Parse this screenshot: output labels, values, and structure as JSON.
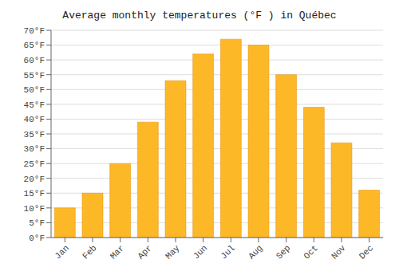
{
  "chart_data": {
    "type": "bar",
    "title": "Average monthly temperatures (°F ) in Québec",
    "categories": [
      "Jan",
      "Feb",
      "Mar",
      "Apr",
      "May",
      "Jun",
      "Jul",
      "Aug",
      "Sep",
      "Oct",
      "Nov",
      "Dec"
    ],
    "values": [
      10,
      15,
      25,
      39,
      53,
      62,
      67,
      65,
      55,
      44,
      32,
      16
    ],
    "color": "#FDB827",
    "ylim": [
      0,
      70
    ],
    "yticks": [
      {
        "value": 0,
        "label": "0°F"
      },
      {
        "value": 5,
        "label": "5°F"
      },
      {
        "value": 10,
        "label": "10°F"
      },
      {
        "value": 15,
        "label": "15°F"
      },
      {
        "value": 20,
        "label": "20°F"
      },
      {
        "value": 25,
        "label": "25°F"
      },
      {
        "value": 30,
        "label": "30°F"
      },
      {
        "value": 35,
        "label": "35°F"
      },
      {
        "value": 40,
        "label": "40°F"
      },
      {
        "value": 45,
        "label": "45°F"
      },
      {
        "value": 50,
        "label": "50°F"
      },
      {
        "value": 55,
        "label": "55°F"
      },
      {
        "value": 60,
        "label": "60°F"
      },
      {
        "value": 65,
        "label": "65°F"
      },
      {
        "value": 70,
        "label": "70°F"
      }
    ],
    "grid": true
  }
}
